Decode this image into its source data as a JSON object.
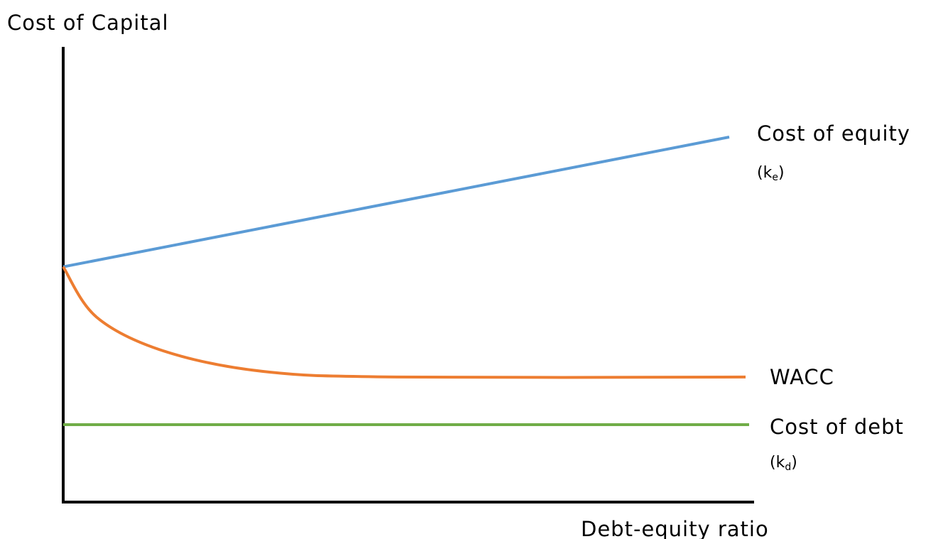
{
  "chart_data": {
    "type": "line",
    "title": "",
    "ylabel": "Cost of Capital",
    "xlabel": "Debt-equity ratio",
    "xlim": [
      0,
      1
    ],
    "ylim": [
      0,
      1
    ],
    "grid": false,
    "legend": "none",
    "series": [
      {
        "name": "Cost of equity",
        "symbol": {
          "base": "(k",
          "sub": "e",
          "close": ")"
        },
        "color": "#5b9bd5",
        "curve": "linear",
        "x": [
          0,
          1
        ],
        "y": [
          0.654,
          1.0
        ]
      },
      {
        "name": "WACC",
        "color": "#ed7d31",
        "curve": "smooth",
        "x": [
          0,
          0.05,
          0.15,
          0.3,
          0.5,
          1.0
        ],
        "y": [
          0.654,
          0.52,
          0.43,
          0.375,
          0.36,
          0.36
        ]
      },
      {
        "name": "Cost of debt",
        "symbol": {
          "base": "(k",
          "sub": "d",
          "close": ")"
        },
        "color": "#70ad47",
        "curve": "linear",
        "x": [
          0,
          1
        ],
        "y": [
          0.233,
          0.233
        ]
      }
    ]
  }
}
